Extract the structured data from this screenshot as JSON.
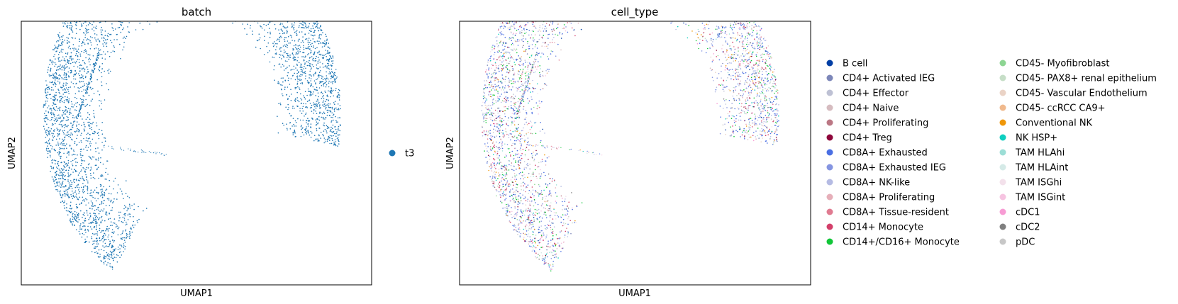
{
  "chart_data": [
    {
      "type": "scatter",
      "title": "batch",
      "xlabel": "UMAP1",
      "ylabel": "UMAP2",
      "grid": false,
      "ticks": "none",
      "legend_placement": "right",
      "series": [
        {
          "name": "t3",
          "color": "#1f77b4"
        }
      ]
    },
    {
      "type": "scatter",
      "title": "cell_type",
      "xlabel": "UMAP1",
      "ylabel": "UMAP2",
      "grid": false,
      "ticks": "none",
      "legend_placement": "right",
      "series": [
        {
          "name": "B cell",
          "color": "#023fa5"
        },
        {
          "name": "CD4+ Activated IEG",
          "color": "#7d87b9"
        },
        {
          "name": "CD4+ Effector",
          "color": "#bec1d4"
        },
        {
          "name": "CD4+ Naive",
          "color": "#d6bcc0"
        },
        {
          "name": "CD4+ Proliferating",
          "color": "#bb7784"
        },
        {
          "name": "CD4+ Treg",
          "color": "#8e063b"
        },
        {
          "name": "CD8A+ Exhausted",
          "color": "#4a6fe3"
        },
        {
          "name": "CD8A+ Exhausted IEG",
          "color": "#8595e1"
        },
        {
          "name": "CD8A+ NK-like",
          "color": "#b5bbe3"
        },
        {
          "name": "CD8A+ Proliferating",
          "color": "#e6afb9"
        },
        {
          "name": "CD8A+ Tissue-resident",
          "color": "#e07b91"
        },
        {
          "name": "CD14+ Monocyte",
          "color": "#d33f6a"
        },
        {
          "name": "CD14+/CD16+ Monocyte",
          "color": "#11c638"
        },
        {
          "name": "CD45- Myofibroblast",
          "color": "#8dd593"
        },
        {
          "name": "CD45- PAX8+ renal epithelium",
          "color": "#c6dec7"
        },
        {
          "name": "CD45- Vascular Endothelium",
          "color": "#ead3c6"
        },
        {
          "name": "CD45- ccRCC CA9+",
          "color": "#f0b98d"
        },
        {
          "name": "Conventional NK",
          "color": "#ef9708"
        },
        {
          "name": "NK HSP+",
          "color": "#0fcfc0"
        },
        {
          "name": "TAM HLAhi",
          "color": "#9cded6"
        },
        {
          "name": "TAM HLAint",
          "color": "#d5eae7"
        },
        {
          "name": "TAM ISGhi",
          "color": "#f3e1eb"
        },
        {
          "name": "TAM ISGint",
          "color": "#f6c4e1"
        },
        {
          "name": "cDC1",
          "color": "#f79cd4"
        },
        {
          "name": "cDC2",
          "color": "#7f7f7f"
        },
        {
          "name": "pDC",
          "color": "#c7c7c7"
        }
      ]
    }
  ]
}
